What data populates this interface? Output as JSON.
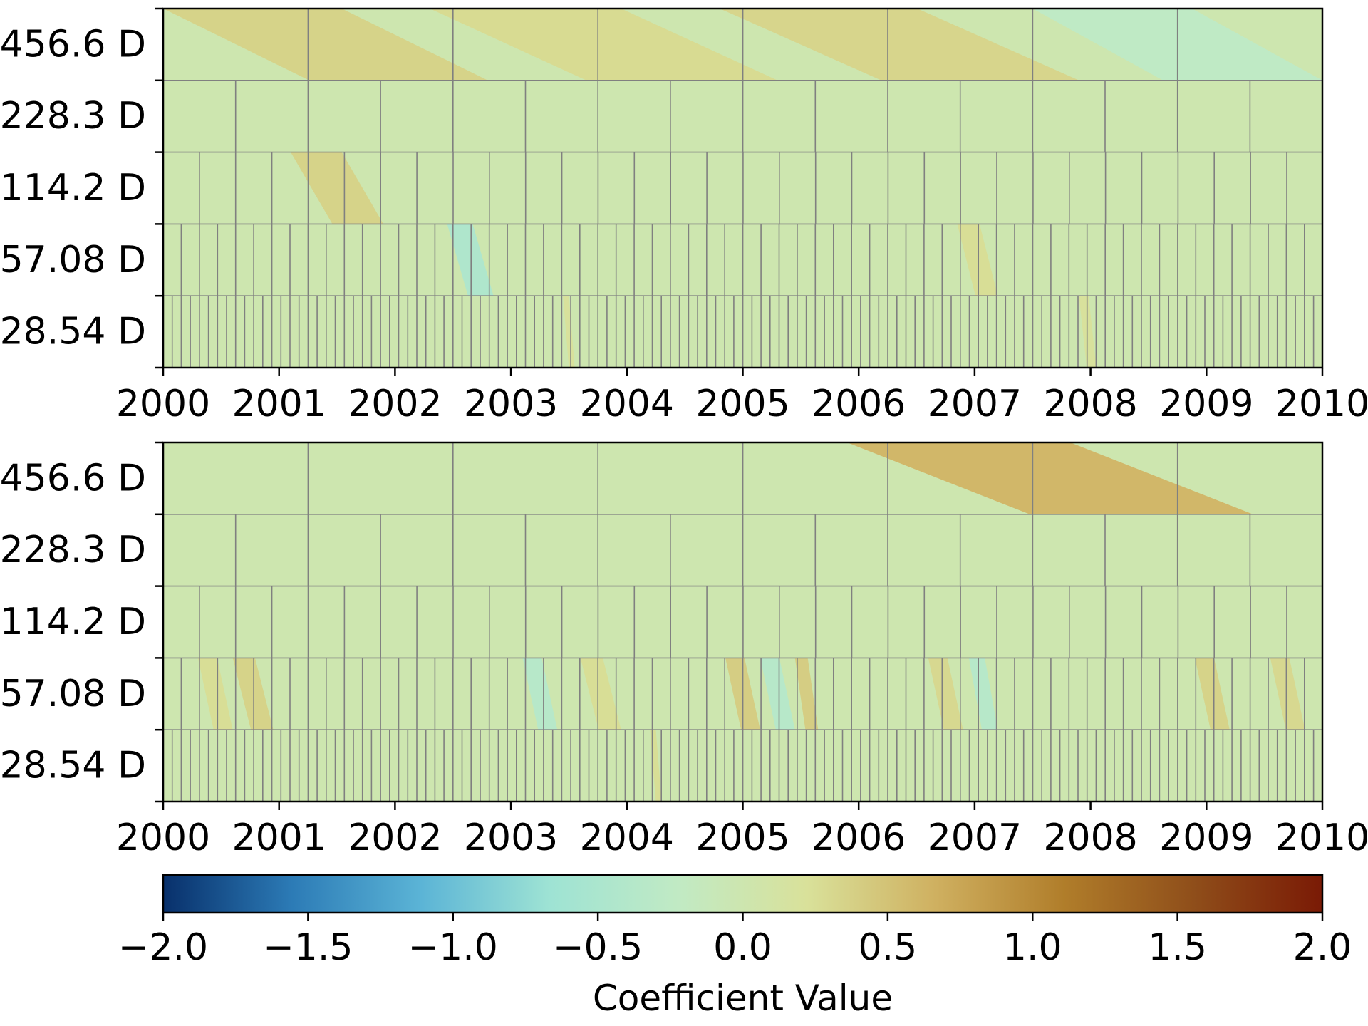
{
  "chart_data": {
    "type": "heatmap",
    "x_ticks": [
      "2000",
      "2001",
      "2002",
      "2003",
      "2004",
      "2005",
      "2006",
      "2007",
      "2008",
      "2009",
      "2010"
    ],
    "xlim": [
      2000,
      2010
    ],
    "levels": [
      "456.6 D",
      "228.3 D",
      "114.2 D",
      "57.08 D",
      "28.54 D"
    ],
    "level_periods_days": [
      456.6,
      228.3,
      114.2,
      57.08,
      28.54
    ],
    "grid_line_color": "#808080",
    "colormap": [
      "#08306b",
      "#2c7bb6",
      "#5bb4d6",
      "#9ee3d4",
      "#c1eac4",
      "#d9e19a",
      "#cfb060",
      "#b07d2a",
      "#8f4e1a",
      "#7a1a05"
    ],
    "background_value": 0.0,
    "panels": [
      {
        "cells": [
          {
            "level": 0,
            "start": 2000.0,
            "end": 2002.8,
            "value": 0.35
          },
          {
            "level": 0,
            "start": 2002.3,
            "end": 2005.3,
            "value": 0.28
          },
          {
            "level": 0,
            "start": 2004.8,
            "end": 2007.9,
            "value": 0.33
          },
          {
            "level": 0,
            "start": 2007.5,
            "end": 2010.0,
            "value": -0.25
          },
          {
            "level": 2,
            "start": 2001.1,
            "end": 2001.9,
            "value": 0.35
          },
          {
            "level": 3,
            "start": 2002.45,
            "end": 2002.85,
            "value": -0.45
          },
          {
            "level": 3,
            "start": 2006.85,
            "end": 2007.2,
            "value": 0.25
          },
          {
            "level": 4,
            "start": 2003.45,
            "end": 2003.55,
            "value": 0.2
          },
          {
            "level": 4,
            "start": 2007.9,
            "end": 2008.05,
            "value": 0.2
          }
        ]
      },
      {
        "cells": [
          {
            "level": 0,
            "start": 2005.9,
            "end": 2009.4,
            "value": 0.6
          },
          {
            "level": 3,
            "start": 2000.3,
            "end": 2000.6,
            "value": 0.25
          },
          {
            "level": 3,
            "start": 2000.6,
            "end": 2000.95,
            "value": 0.35
          },
          {
            "level": 3,
            "start": 2003.1,
            "end": 2003.4,
            "value": -0.35
          },
          {
            "level": 3,
            "start": 2003.6,
            "end": 2003.95,
            "value": 0.25
          },
          {
            "level": 3,
            "start": 2004.85,
            "end": 2005.15,
            "value": 0.4
          },
          {
            "level": 3,
            "start": 2005.15,
            "end": 2005.45,
            "value": -0.35
          },
          {
            "level": 3,
            "start": 2005.45,
            "end": 2005.65,
            "value": 0.4
          },
          {
            "level": 3,
            "start": 2006.6,
            "end": 2006.9,
            "value": 0.3
          },
          {
            "level": 3,
            "start": 2006.95,
            "end": 2007.2,
            "value": -0.35
          },
          {
            "level": 3,
            "start": 2008.9,
            "end": 2009.2,
            "value": 0.35
          },
          {
            "level": 3,
            "start": 2009.55,
            "end": 2009.85,
            "value": 0.3
          },
          {
            "level": 4,
            "start": 2004.2,
            "end": 2004.3,
            "value": 0.25
          }
        ]
      }
    ],
    "colorbar": {
      "range": [
        -2.0,
        2.0
      ],
      "tick_values": [
        -2.0,
        -1.5,
        -1.0,
        -0.5,
        0.0,
        0.5,
        1.0,
        1.5,
        2.0
      ],
      "tick_labels": [
        "−2.0",
        "−1.5",
        "−1.0",
        "−0.5",
        "0.0",
        "0.5",
        "1.0",
        "1.5",
        "2.0"
      ],
      "label": "Coefficient Value"
    }
  }
}
